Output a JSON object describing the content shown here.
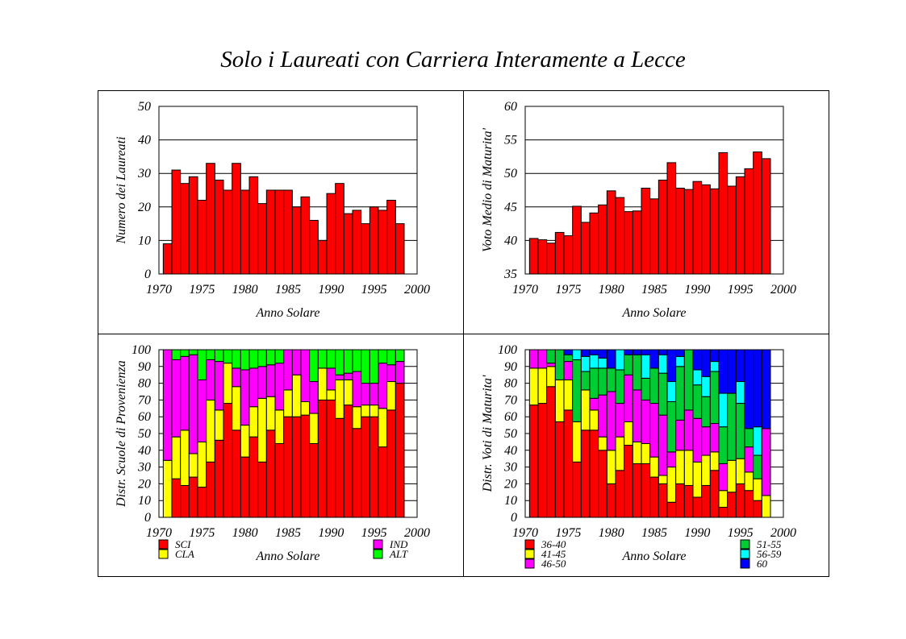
{
  "title": "Solo i Laureati con Carriera Interamente a Lecce",
  "chart_data": [
    {
      "type": "bar",
      "ylabel": "Numero dei Laureati",
      "xlabel": "Anno Solare",
      "xlim": [
        1970,
        2000
      ],
      "ylim": [
        0,
        50
      ],
      "xticks": [
        "1970",
        "1975",
        "1980",
        "1985",
        "1990",
        "1995",
        "2000"
      ],
      "yticks": [
        "0",
        "10",
        "20",
        "30",
        "40",
        "50"
      ],
      "x": [
        1971,
        1972,
        1973,
        1974,
        1975,
        1976,
        1977,
        1978,
        1979,
        1980,
        1981,
        1982,
        1983,
        1984,
        1985,
        1986,
        1987,
        1988,
        1989,
        1990,
        1991,
        1992,
        1993,
        1994,
        1995,
        1996,
        1997,
        1998
      ],
      "values": [
        9,
        31,
        27,
        29,
        22,
        33,
        28,
        25,
        33,
        25,
        29,
        21,
        25,
        25,
        25,
        20,
        23,
        16,
        10,
        24,
        27,
        18,
        19,
        15,
        20,
        19,
        22,
        15
      ],
      "color": "#ff0000"
    },
    {
      "type": "bar",
      "ylabel": "Voto Medio di Maturita'",
      "xlabel": "Anno Solare",
      "xlim": [
        1970,
        2000
      ],
      "ylim": [
        35,
        60
      ],
      "xticks": [
        "1970",
        "1975",
        "1980",
        "1985",
        "1990",
        "1995",
        "2000"
      ],
      "yticks": [
        "35",
        "40",
        "45",
        "50",
        "55",
        "60"
      ],
      "x": [
        1971,
        1972,
        1973,
        1974,
        1975,
        1976,
        1977,
        1978,
        1979,
        1980,
        1981,
        1982,
        1983,
        1984,
        1985,
        1986,
        1987,
        1988,
        1989,
        1990,
        1991,
        1992,
        1993,
        1994,
        1995,
        1996,
        1997,
        1998
      ],
      "values": [
        40.3,
        40.1,
        39.6,
        41.2,
        40.7,
        45.1,
        42.7,
        44.1,
        45.3,
        47.4,
        46.4,
        44.3,
        44.4,
        47.8,
        46.2,
        49.0,
        51.6,
        47.8,
        47.6,
        48.8,
        48.3,
        47.7,
        53.1,
        48.1,
        49.5,
        50.7,
        53.2,
        52.2
      ],
      "color": "#ff0000"
    },
    {
      "type": "bar",
      "stacked": true,
      "ylabel": "Distr. Scuole di Provenienza",
      "xlabel": "Anno Solare",
      "xlim": [
        1970,
        2000
      ],
      "ylim": [
        0,
        100
      ],
      "xticks": [
        "1970",
        "1975",
        "1980",
        "1985",
        "1990",
        "1995",
        "2000"
      ],
      "yticks": [
        "0",
        "10",
        "20",
        "30",
        "40",
        "50",
        "60",
        "70",
        "80",
        "90",
        "100"
      ],
      "x": [
        1971,
        1972,
        1973,
        1974,
        1975,
        1976,
        1977,
        1978,
        1979,
        1980,
        1981,
        1982,
        1983,
        1984,
        1985,
        1986,
        1987,
        1988,
        1989,
        1990,
        1991,
        1992,
        1993,
        1994,
        1995,
        1996,
        1997,
        1998
      ],
      "series": [
        {
          "name": "SCI",
          "color": "#ff0000",
          "values": [
            0,
            23,
            19,
            24,
            18,
            33,
            46,
            68,
            52,
            36,
            48,
            33,
            52,
            44,
            60,
            60,
            61,
            44,
            70,
            70,
            59,
            67,
            53,
            60,
            60,
            42,
            64,
            80
          ]
        },
        {
          "name": "CLA",
          "color": "#ffff00",
          "values": [
            34,
            25,
            33,
            14,
            27,
            37,
            18,
            24,
            26,
            19,
            18,
            38,
            20,
            20,
            16,
            25,
            8,
            18,
            19,
            6,
            23,
            15,
            13,
            7,
            7,
            23,
            17,
            0
          ]
        },
        {
          "name": "IND",
          "color": "#ff00ff",
          "values": [
            66,
            46,
            44,
            59,
            37,
            24,
            29,
            0,
            11,
            33,
            23,
            19,
            19,
            28,
            24,
            15,
            31,
            19,
            0,
            13,
            3,
            4,
            21,
            13,
            13,
            27,
            10,
            13
          ]
        },
        {
          "name": "ALT",
          "color": "#00ff00",
          "values": [
            0,
            6,
            4,
            3,
            18,
            6,
            7,
            8,
            11,
            12,
            11,
            10,
            9,
            8,
            0,
            0,
            0,
            19,
            11,
            11,
            15,
            14,
            13,
            20,
            20,
            8,
            9,
            7
          ]
        }
      ]
    },
    {
      "type": "bar",
      "stacked": true,
      "ylabel": "Distr. Voti di Maturita'",
      "xlabel": "Anno Solare",
      "xlim": [
        1970,
        2000
      ],
      "ylim": [
        0,
        100
      ],
      "xticks": [
        "1970",
        "1975",
        "1980",
        "1985",
        "1990",
        "1995",
        "2000"
      ],
      "yticks": [
        "0",
        "10",
        "20",
        "30",
        "40",
        "50",
        "60",
        "70",
        "80",
        "90",
        "100"
      ],
      "x": [
        1971,
        1972,
        1973,
        1974,
        1975,
        1976,
        1977,
        1978,
        1979,
        1980,
        1981,
        1982,
        1983,
        1984,
        1985,
        1986,
        1987,
        1988,
        1989,
        1990,
        1991,
        1992,
        1993,
        1994,
        1995,
        1996,
        1997,
        1998
      ],
      "series": [
        {
          "name": "36-40",
          "color": "#ff0000",
          "values": [
            67,
            68,
            78,
            57,
            64,
            33,
            52,
            52,
            40,
            20,
            28,
            43,
            32,
            32,
            24,
            20,
            9,
            20,
            19,
            12,
            19,
            28,
            6,
            15,
            20,
            16,
            10,
            0
          ]
        },
        {
          "name": "41-45",
          "color": "#ffff00",
          "values": [
            22,
            21,
            12,
            25,
            18,
            24,
            24,
            12,
            8,
            20,
            20,
            14,
            13,
            12,
            12,
            5,
            21,
            20,
            21,
            21,
            18,
            11,
            10,
            19,
            15,
            11,
            13,
            13
          ]
        },
        {
          "name": "46-50",
          "color": "#ff00ff",
          "values": [
            11,
            11,
            2,
            0,
            11,
            0,
            0,
            7,
            25,
            35,
            20,
            28,
            31,
            26,
            32,
            36,
            9,
            18,
            24,
            26,
            17,
            17,
            16,
            0,
            0,
            15,
            0,
            40
          ]
        },
        {
          "name": "51-55",
          "color": "#00cc33",
          "values": [
            0,
            0,
            8,
            18,
            4,
            37,
            11,
            18,
            16,
            14,
            20,
            12,
            21,
            13,
            21,
            25,
            30,
            32,
            36,
            20,
            18,
            31,
            22,
            40,
            33,
            11,
            14,
            0
          ]
        },
        {
          "name": "56-59",
          "color": "#00ffff",
          "values": [
            0,
            0,
            0,
            0,
            0,
            6,
            9,
            8,
            6,
            0,
            14,
            0,
            0,
            14,
            0,
            11,
            12,
            6,
            0,
            9,
            12,
            6,
            20,
            0,
            13,
            0,
            17,
            0
          ]
        },
        {
          "name": "60",
          "color": "#0000ff",
          "values": [
            0,
            0,
            0,
            0,
            3,
            0,
            4,
            3,
            5,
            11,
            0,
            3,
            3,
            3,
            11,
            3,
            19,
            4,
            0,
            12,
            16,
            7,
            26,
            26,
            19,
            47,
            46,
            47
          ]
        }
      ],
      "legend_rows": [
        [
          "36-40",
          "51-55"
        ],
        [
          "41-45",
          "56-59"
        ],
        [
          "46-50",
          "60"
        ]
      ]
    }
  ],
  "legends": {
    "schools": {
      "left": [
        {
          "label": "SCI",
          "color": "#ff0000"
        },
        {
          "label": "CLA",
          "color": "#ffff00"
        }
      ],
      "right": [
        {
          "label": "IND",
          "color": "#ff00ff"
        },
        {
          "label": "ALT",
          "color": "#00ff00"
        }
      ]
    },
    "grades": {
      "left": [
        {
          "label": "36-40",
          "color": "#ff0000"
        },
        {
          "label": "41-45",
          "color": "#ffff00"
        },
        {
          "label": "46-50",
          "color": "#ff00ff"
        }
      ],
      "right": [
        {
          "label": "51-55",
          "color": "#00cc33"
        },
        {
          "label": "56-59",
          "color": "#00ffff"
        },
        {
          "label": "60",
          "color": "#0000ff"
        }
      ]
    }
  }
}
